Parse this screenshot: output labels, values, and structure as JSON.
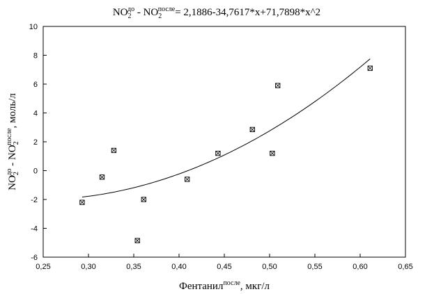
{
  "chart_data": {
    "type": "scatter",
    "title": {
      "parts": [
        {
          "text": "NO",
          "role": "base"
        },
        {
          "text": "2",
          "role": "sub"
        },
        {
          "text": "до",
          "role": "sup"
        },
        {
          "text": " - NO",
          "role": "base"
        },
        {
          "text": "2",
          "role": "sub"
        },
        {
          "text": "после",
          "role": "sup"
        },
        {
          "text": "= 2,1886-34,7617*x+71,7898*x^2",
          "role": "base"
        }
      ]
    },
    "xlabel": {
      "parts": [
        {
          "text": "Фентанил",
          "role": "base"
        },
        {
          "text": "после",
          "role": "sup"
        },
        {
          "text": ", мкг/л",
          "role": "base"
        }
      ]
    },
    "ylabel": {
      "parts": [
        {
          "text": "NO",
          "role": "base"
        },
        {
          "text": "2",
          "role": "sub"
        },
        {
          "text": "до",
          "role": "sup"
        },
        {
          "text": " - NO",
          "role": "base"
        },
        {
          "text": "2",
          "role": "sub"
        },
        {
          "text": "после",
          "role": "sup"
        },
        {
          "text": ", моль/л",
          "role": "base"
        }
      ]
    },
    "xlim": [
      0.25,
      0.65
    ],
    "ylim": [
      -6,
      10
    ],
    "x_ticks": [
      "0,25",
      "0,30",
      "0,35",
      "0,40",
      "0,45",
      "0,50",
      "0,55",
      "0,60",
      "0,65"
    ],
    "y_ticks": [
      "-6",
      "-4",
      "-2",
      "0",
      "2",
      "4",
      "6",
      "8",
      "10"
    ],
    "grid": false,
    "points": [
      {
        "x": 0.293,
        "y": -2.2
      },
      {
        "x": 0.315,
        "y": -0.45
      },
      {
        "x": 0.328,
        "y": 1.4
      },
      {
        "x": 0.354,
        "y": -4.85
      },
      {
        "x": 0.361,
        "y": -2.0
      },
      {
        "x": 0.409,
        "y": -0.6
      },
      {
        "x": 0.443,
        "y": 1.2
      },
      {
        "x": 0.481,
        "y": 2.85
      },
      {
        "x": 0.503,
        "y": 1.2
      },
      {
        "x": 0.509,
        "y": 5.9
      },
      {
        "x": 0.611,
        "y": 7.1
      }
    ],
    "fit": {
      "type": "quadratic",
      "coefficients": [
        2.1886,
        -34.7617,
        71.7898
      ],
      "x_range": [
        0.293,
        0.611
      ]
    },
    "colors": {
      "marker": "#000000",
      "line": "#000000",
      "frame": "#000000",
      "background": "#ffffff"
    }
  }
}
